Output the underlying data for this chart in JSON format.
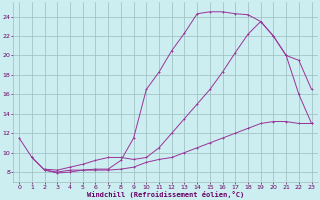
{
  "bg_color": "#cceef0",
  "grid_color": "#9bbcbe",
  "line_color": "#993399",
  "xlabel": "Windchill (Refroidissement éolien,°C)",
  "xlabel_color": "#660066",
  "tick_color": "#660066",
  "xlim": [
    -0.5,
    23.5
  ],
  "ylim": [
    7.0,
    25.5
  ],
  "yticks": [
    8,
    10,
    12,
    14,
    16,
    18,
    20,
    22,
    24
  ],
  "xticks": [
    0,
    1,
    2,
    3,
    4,
    5,
    6,
    7,
    8,
    9,
    10,
    11,
    12,
    13,
    14,
    15,
    16,
    17,
    18,
    19,
    20,
    21,
    22,
    23
  ],
  "curve1_x": [
    0,
    1,
    2,
    3,
    4,
    5,
    6,
    7,
    8,
    9,
    10,
    11,
    12,
    13,
    14,
    15,
    16,
    17,
    18,
    19,
    20,
    21,
    22,
    23
  ],
  "curve1_y": [
    11.5,
    9.5,
    8.2,
    8.0,
    8.2,
    8.2,
    8.3,
    8.3,
    9.2,
    11.5,
    16.5,
    18.3,
    20.5,
    22.3,
    24.3,
    24.5,
    24.5,
    24.3,
    24.2,
    23.5,
    22.0,
    20.0,
    16.0,
    13.0
  ],
  "curve2_x": [
    1,
    2,
    3,
    4,
    5,
    6,
    7,
    8,
    9,
    10,
    11,
    12,
    13,
    14,
    15,
    16,
    17,
    18,
    19,
    20,
    21,
    22,
    23
  ],
  "curve2_y": [
    9.5,
    8.2,
    7.9,
    8.0,
    8.2,
    8.2,
    8.2,
    8.3,
    8.5,
    9.0,
    9.3,
    9.5,
    10.0,
    10.5,
    11.0,
    11.5,
    12.0,
    12.5,
    13.0,
    13.2,
    13.2,
    13.0,
    13.0
  ],
  "curve3_x": [
    2,
    3,
    4,
    5,
    6,
    7,
    8,
    9,
    10,
    11,
    12,
    13,
    14,
    15,
    16,
    17,
    18,
    19,
    20,
    21,
    22,
    23
  ],
  "curve3_y": [
    8.3,
    8.2,
    8.5,
    8.8,
    9.2,
    9.5,
    9.5,
    9.3,
    9.5,
    10.5,
    12.0,
    13.5,
    15.0,
    16.5,
    18.3,
    20.3,
    22.2,
    23.5,
    22.0,
    20.0,
    19.5,
    16.5
  ]
}
